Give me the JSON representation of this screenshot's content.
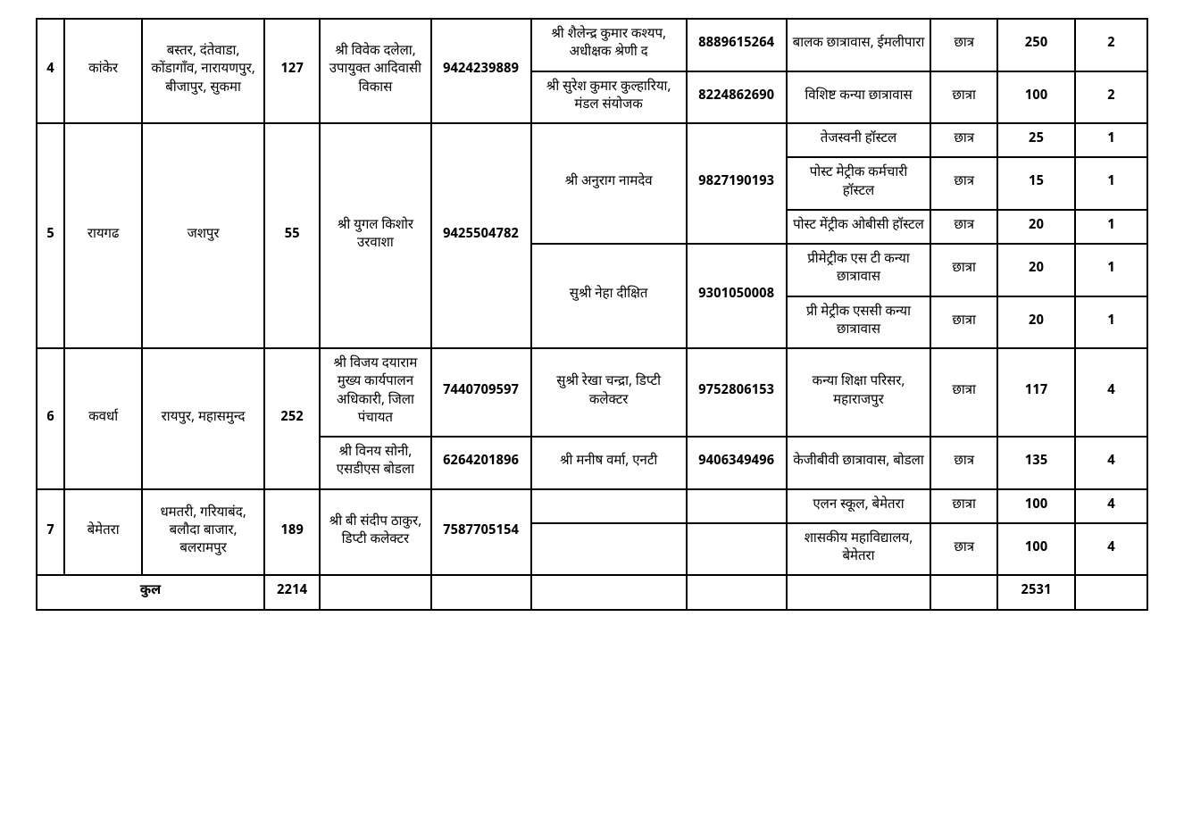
{
  "rows": [
    {
      "sn": "4",
      "district": "कांकेर",
      "allied": "बस्तर, दंतेवाडा, कोंडागाँव, नारायणपुर, बीजापुर, सुकमा",
      "cap1": "127",
      "officers": [
        {
          "name": "श्री विवेक दलेला, उपायुक्त आदिवासी विकास",
          "phone": "9424239889",
          "span": 2
        }
      ],
      "liaisons": [
        {
          "name": "श्री शैलेन्द्र कुमार कश्यप, अधीक्षक श्रेणी द",
          "phone": "8889615264",
          "span": 1
        },
        {
          "name": "श्री सुरेश कुमार कुल्हारिया, मंडल संयोजक",
          "phone": "8224862690",
          "span": 1
        }
      ],
      "hostels": [
        {
          "name": "बालक छात्रावास, ईमलीपारा",
          "gender": "छात्र",
          "seats": "250",
          "rooms": "2"
        },
        {
          "name": "विशिष्ट कन्या छात्रावास",
          "gender": "छात्रा",
          "seats": "100",
          "rooms": "2"
        }
      ]
    },
    {
      "sn": "5",
      "district": "रायगढ",
      "allied": "जशपुर",
      "cap1": "55",
      "officers": [
        {
          "name": "श्री युगल किशोर उरवाशा",
          "phone": "9425504782",
          "span": 5
        }
      ],
      "liaisons": [
        {
          "name": "श्री अनुराग नामदेव",
          "phone": "9827190193",
          "span": 3
        },
        {
          "name": "सुश्री नेहा दीक्षित",
          "phone": "9301050008",
          "span": 2
        }
      ],
      "hostels": [
        {
          "name": "तेजस्वनी हॉस्टल",
          "gender": "छात्र",
          "seats": "25",
          "rooms": "1"
        },
        {
          "name": "पोस्ट मेट्रीक कर्मचारी हॉस्टल",
          "gender": "छात्र",
          "seats": "15",
          "rooms": "1"
        },
        {
          "name": "पोस्ट मेंट्रीक ओबीसी हॉस्टल",
          "gender": "छात्र",
          "seats": "20",
          "rooms": "1"
        },
        {
          "name": "प्रीमेट्रीक एस टी कन्या छात्रावास",
          "gender": "छात्रा",
          "seats": "20",
          "rooms": "1"
        },
        {
          "name": "प्री मेट्रीक एससी कन्या छात्रावास",
          "gender": "छात्रा",
          "seats": "20",
          "rooms": "1"
        }
      ]
    },
    {
      "sn": "6",
      "district": "कवर्धा",
      "allied": "रायपुर, महासमुन्द",
      "cap1": "252",
      "officers": [
        {
          "name": "श्री विजय दयाराम मुख्य कार्यपालन अधिकारी, जिला पंचायत",
          "phone": "7440709597",
          "span": 1
        },
        {
          "name": "श्री विनय सोनी, एसडीएस बोडला",
          "phone": "6264201896",
          "span": 1
        }
      ],
      "liaisons": [
        {
          "name": "सुश्री रेखा चन्द्रा, डिप्टी कलेक्टर",
          "phone": "9752806153",
          "span": 1
        },
        {
          "name": "श्री मनीष वर्मा, एनटी",
          "phone": "9406349496",
          "span": 1
        }
      ],
      "hostels": [
        {
          "name": "कन्या शिक्षा परिसर, महाराजपुर",
          "gender": "छात्रा",
          "seats": "117",
          "rooms": "4"
        },
        {
          "name": "केजीबीवी छात्रावास, बोडला",
          "gender": "छात्र",
          "seats": "135",
          "rooms": "4"
        }
      ]
    },
    {
      "sn": "7",
      "district": "बेमेतरा",
      "allied": "धमतरी, गरियाबंद, बलौदा बाजार, बलरामपुर",
      "cap1": "189",
      "officers": [
        {
          "name": "श्री बी संदीप ठाकुर, डिप्टी कलेक्टर",
          "phone": "7587705154",
          "span": 2
        }
      ],
      "liaisons": [
        {
          "name": "",
          "phone": "",
          "span": 1
        },
        {
          "name": "",
          "phone": "",
          "span": 1
        }
      ],
      "hostels": [
        {
          "name": "एलन स्कूल, बेमेतरा",
          "gender": "छात्रा",
          "seats": "100",
          "rooms": "4"
        },
        {
          "name": "शासकीय महाविद्यालय, बेमेतरा",
          "gender": "छात्र",
          "seats": "100",
          "rooms": "4"
        }
      ]
    }
  ],
  "total": {
    "label": "कुल",
    "cap1": "2214",
    "seats": "2531"
  }
}
